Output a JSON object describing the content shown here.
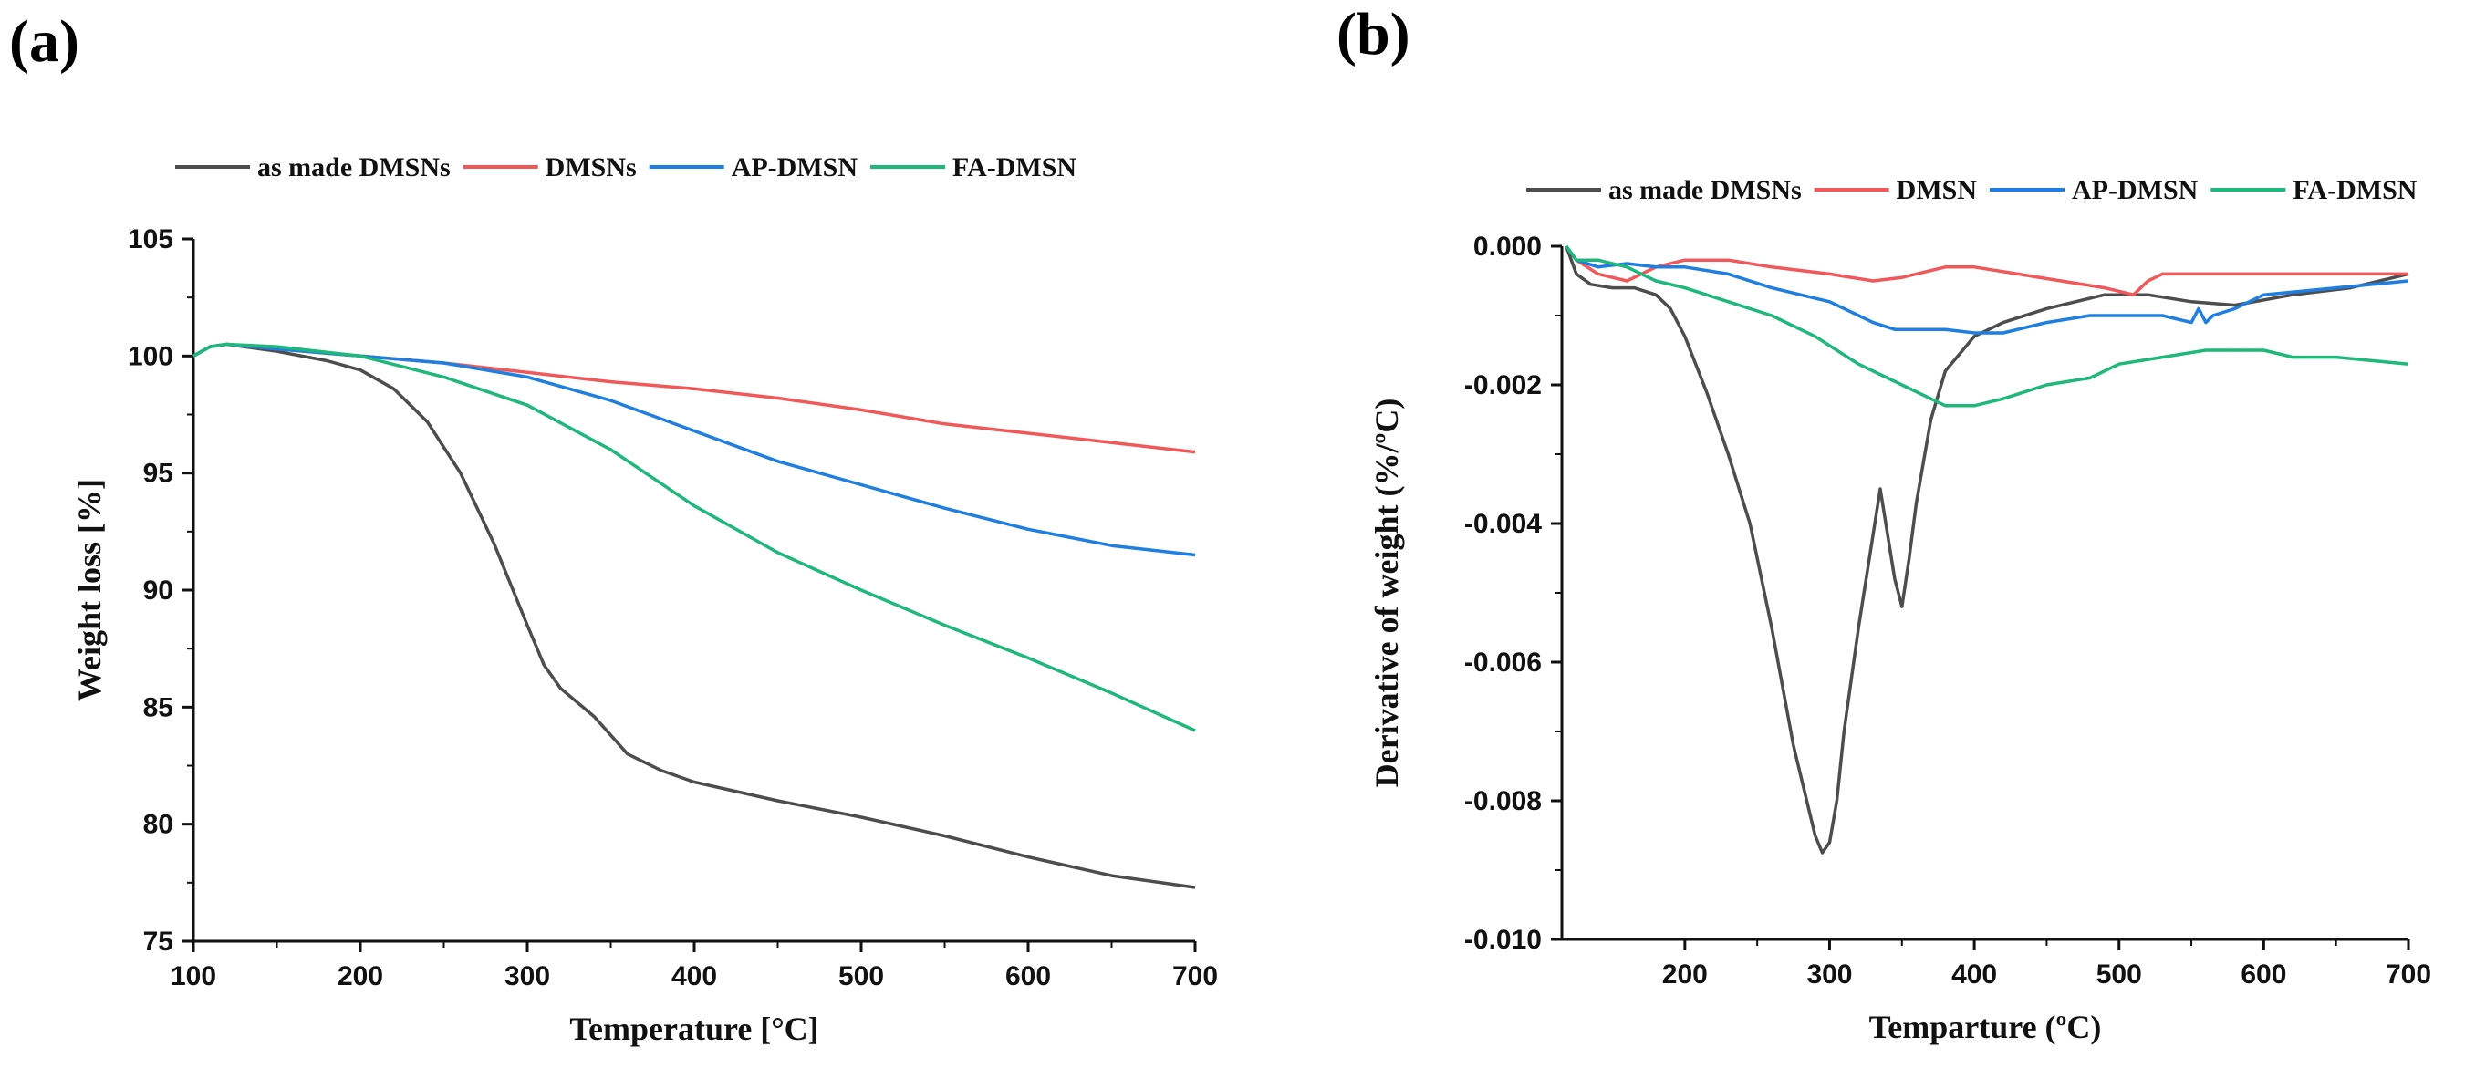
{
  "panels": [
    {
      "label": "(a)"
    },
    {
      "label": "(b)"
    }
  ],
  "chart_data": [
    {
      "type": "line",
      "title": "",
      "xlabel": "Temperature  [°C]",
      "ylabel": "Weight loss [%]",
      "xlim": [
        100,
        700
      ],
      "ylim": [
        75,
        105
      ],
      "xticks": [
        100,
        200,
        300,
        400,
        500,
        600,
        700
      ],
      "yticks": [
        75,
        80,
        85,
        90,
        95,
        100,
        105
      ],
      "ytick_labels": [
        "75",
        "80",
        "85",
        "90",
        "95",
        "100",
        "105"
      ],
      "legend_position": "top",
      "series": [
        {
          "name": "as made DMSNs",
          "color": "#4d4d4d",
          "x": [
            100,
            110,
            120,
            150,
            180,
            200,
            220,
            240,
            260,
            280,
            300,
            310,
            320,
            330,
            340,
            350,
            360,
            380,
            400,
            450,
            500,
            550,
            600,
            650,
            700
          ],
          "y": [
            100,
            100.4,
            100.5,
            100.2,
            99.8,
            99.4,
            98.6,
            97.2,
            95.0,
            92.0,
            88.5,
            86.8,
            85.8,
            85.2,
            84.6,
            83.8,
            83.0,
            82.3,
            81.8,
            81.0,
            80.3,
            79.5,
            78.6,
            77.8,
            77.3
          ]
        },
        {
          "name": "DMSNs",
          "color": "#f0585a",
          "x": [
            100,
            110,
            120,
            150,
            200,
            250,
            300,
            350,
            400,
            450,
            500,
            550,
            600,
            650,
            700
          ],
          "y": [
            100,
            100.4,
            100.5,
            100.3,
            100.0,
            99.7,
            99.3,
            98.9,
            98.6,
            98.2,
            97.7,
            97.1,
            96.7,
            96.3,
            95.9
          ]
        },
        {
          "name": "AP-DMSN",
          "color": "#1f7fe0",
          "x": [
            100,
            110,
            120,
            150,
            200,
            250,
            300,
            350,
            400,
            450,
            500,
            550,
            600,
            650,
            700
          ],
          "y": [
            100,
            100.4,
            100.5,
            100.3,
            100.0,
            99.7,
            99.1,
            98.1,
            96.8,
            95.5,
            94.5,
            93.5,
            92.6,
            91.9,
            91.5
          ]
        },
        {
          "name": "FA-DMSN",
          "color": "#1db87a",
          "x": [
            100,
            110,
            120,
            150,
            200,
            250,
            300,
            350,
            400,
            450,
            500,
            550,
            600,
            650,
            700
          ],
          "y": [
            100,
            100.4,
            100.5,
            100.4,
            100.0,
            99.1,
            97.9,
            96.0,
            93.6,
            91.6,
            90.0,
            88.5,
            87.1,
            85.6,
            84.0
          ]
        }
      ]
    },
    {
      "type": "line",
      "title": "",
      "xlabel": "Temparture (ºC)",
      "ylabel": "Derivative of weight (%/ºC)",
      "xlim": [
        115,
        700
      ],
      "ylim": [
        -0.01,
        0.0
      ],
      "xticks": [
        200,
        300,
        400,
        500,
        600,
        700
      ],
      "yticks": [
        0.0,
        -0.002,
        -0.004,
        -0.006,
        -0.008,
        -0.01
      ],
      "ytick_labels": [
        "0.000",
        "-0.002",
        "-0.004",
        "-0.006",
        "-0.008",
        "-0.010"
      ],
      "legend_position": "top",
      "series": [
        {
          "name": "as made DMSNs",
          "color": "#4d4d4d",
          "x": [
            118,
            125,
            135,
            150,
            165,
            180,
            190,
            200,
            215,
            230,
            245,
            260,
            275,
            290,
            295,
            300,
            305,
            310,
            320,
            335,
            345,
            350,
            355,
            360,
            370,
            380,
            400,
            420,
            450,
            490,
            520,
            550,
            580,
            620,
            660,
            700
          ],
          "y": [
            0,
            -0.0004,
            -0.00055,
            -0.0006,
            -0.0006,
            -0.0007,
            -0.0009,
            -0.0013,
            -0.0021,
            -0.003,
            -0.004,
            -0.0055,
            -0.0072,
            -0.0085,
            -0.00875,
            -0.0086,
            -0.008,
            -0.007,
            -0.0055,
            -0.0035,
            -0.0048,
            -0.0052,
            -0.0045,
            -0.0037,
            -0.0025,
            -0.0018,
            -0.0013,
            -0.0011,
            -0.0009,
            -0.0007,
            -0.0007,
            -0.0008,
            -0.00085,
            -0.0007,
            -0.0006,
            -0.0004
          ]
        },
        {
          "name": "DMSN",
          "color": "#f0585a",
          "x": [
            118,
            125,
            140,
            160,
            180,
            200,
            230,
            260,
            300,
            330,
            350,
            380,
            400,
            430,
            460,
            490,
            510,
            520,
            530,
            550,
            600,
            650,
            700
          ],
          "y": [
            0,
            -0.0002,
            -0.0004,
            -0.0005,
            -0.0003,
            -0.0002,
            -0.0002,
            -0.0003,
            -0.0004,
            -0.0005,
            -0.00045,
            -0.0003,
            -0.0003,
            -0.0004,
            -0.0005,
            -0.0006,
            -0.0007,
            -0.0005,
            -0.0004,
            -0.0004,
            -0.0004,
            -0.0004,
            -0.0004
          ]
        },
        {
          "name": "AP-DMSN",
          "color": "#1f7fe0",
          "x": [
            118,
            125,
            140,
            160,
            180,
            200,
            230,
            260,
            300,
            330,
            345,
            360,
            380,
            400,
            420,
            450,
            480,
            500,
            530,
            550,
            555,
            560,
            565,
            580,
            600,
            650,
            700
          ],
          "y": [
            0,
            -0.0002,
            -0.0003,
            -0.00025,
            -0.0003,
            -0.0003,
            -0.0004,
            -0.0006,
            -0.0008,
            -0.0011,
            -0.0012,
            -0.0012,
            -0.0012,
            -0.00125,
            -0.00125,
            -0.0011,
            -0.001,
            -0.001,
            -0.001,
            -0.0011,
            -0.0009,
            -0.0011,
            -0.001,
            -0.0009,
            -0.0007,
            -0.0006,
            -0.0005
          ]
        },
        {
          "name": "FA-DMSN",
          "color": "#1db87a",
          "x": [
            118,
            125,
            140,
            160,
            180,
            200,
            230,
            260,
            290,
            320,
            350,
            370,
            380,
            390,
            400,
            420,
            450,
            480,
            500,
            530,
            560,
            600,
            620,
            650,
            700
          ],
          "y": [
            0,
            -0.0002,
            -0.0002,
            -0.0003,
            -0.0005,
            -0.0006,
            -0.0008,
            -0.001,
            -0.0013,
            -0.0017,
            -0.002,
            -0.0022,
            -0.0023,
            -0.0023,
            -0.0023,
            -0.0022,
            -0.002,
            -0.0019,
            -0.0017,
            -0.0016,
            -0.0015,
            -0.0015,
            -0.0016,
            -0.0016,
            -0.0017
          ]
        }
      ]
    }
  ]
}
